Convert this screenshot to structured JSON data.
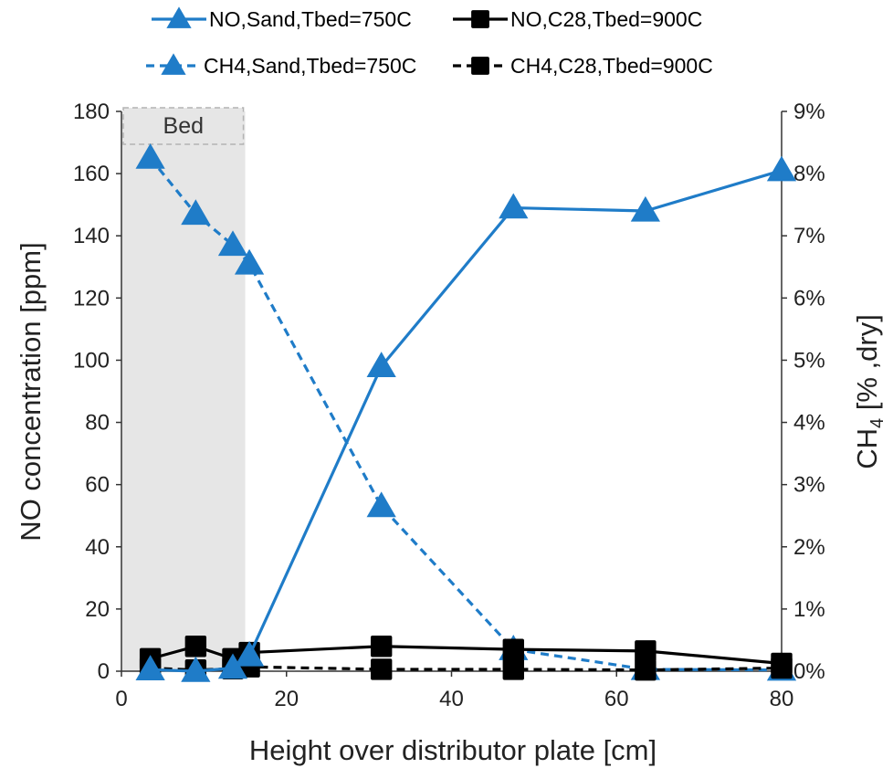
{
  "chart_data": {
    "type": "line",
    "xlabel": "Height over distributor plate [cm]",
    "ylabel": "NO concentration [ppm]",
    "y2label": {
      "main": "CH",
      "sub": "4",
      "rest": " [% ,dry]"
    },
    "xlim": [
      0,
      80
    ],
    "ylim": [
      0,
      180
    ],
    "y2lim": [
      0,
      9
    ],
    "x_ticks": [
      "0",
      "20",
      "40",
      "60",
      "80"
    ],
    "y_ticks": [
      "0",
      "20",
      "40",
      "60",
      "80",
      "100",
      "120",
      "140",
      "160",
      "180"
    ],
    "y2_ticks": [
      "0%",
      "1%",
      "2%",
      "3%",
      "4%",
      "5%",
      "6%",
      "7%",
      "8%",
      "9%"
    ],
    "grid": false,
    "legend_position": "top",
    "bed_region": {
      "label": "Bed",
      "x_start": 0,
      "x_end": 15
    },
    "series": [
      {
        "name": "NO,Sand,Tbed=750C",
        "axis": "left",
        "marker": "triangle",
        "dash": "solid",
        "color": "#1f7cc8",
        "x": [
          3.5,
          9,
          13.5,
          15.5,
          31.5,
          47.5,
          63.5,
          80
        ],
        "y": [
          0.5,
          0,
          1,
          5,
          98,
          149,
          148,
          161
        ]
      },
      {
        "name": "NO,C28,Tbed=900C",
        "axis": "left",
        "marker": "square",
        "dash": "solid",
        "color": "#000000",
        "x": [
          3.5,
          9,
          13.5,
          15.5,
          31.5,
          47.5,
          63.5,
          80
        ],
        "y": [
          4,
          8,
          4,
          6,
          8,
          7,
          6.5,
          2.5
        ]
      },
      {
        "name": "CH4,Sand,Tbed=750C",
        "axis": "right",
        "marker": "triangle",
        "dash": "dash",
        "color": "#1f7cc8",
        "x": [
          3.5,
          9,
          13.5,
          15.5,
          31.5,
          47.5,
          63.5,
          80
        ],
        "y": [
          8.25,
          7.35,
          6.85,
          6.55,
          2.65,
          0.35,
          0.03,
          0.02
        ]
      },
      {
        "name": "CH4,C28,Tbed=900C",
        "axis": "right",
        "marker": "square",
        "dash": "dash",
        "color": "#000000",
        "x": [
          3.5,
          9,
          13.5,
          15.5,
          31.5,
          47.5,
          63.5,
          80
        ],
        "y": [
          0.05,
          0.02,
          0.04,
          0.07,
          0.03,
          0.03,
          0.02,
          0.05
        ]
      }
    ]
  }
}
